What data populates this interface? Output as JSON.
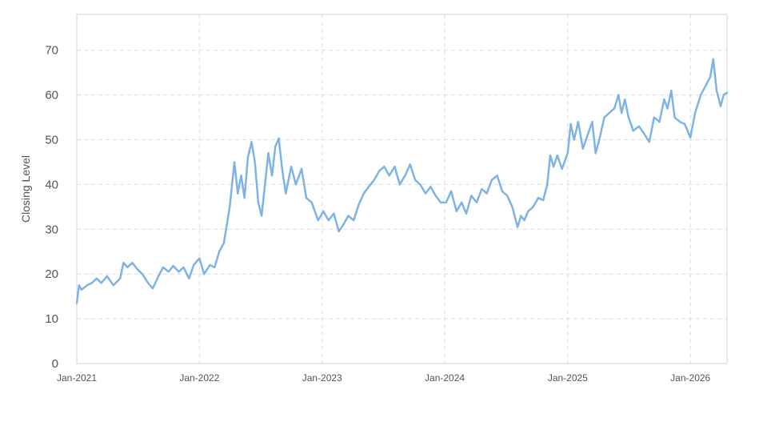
{
  "chart_data": {
    "type": "line",
    "title": "",
    "xlabel": "",
    "ylabel": "Closing Level",
    "ylim": [
      0,
      78
    ],
    "xlim": [
      "2021-01-01",
      "2026-04-20"
    ],
    "yticks": [
      0,
      10,
      20,
      30,
      40,
      50,
      60,
      70
    ],
    "xticks": [
      {
        "date": "2021-01-01",
        "label": "Jan-2021"
      },
      {
        "date": "2022-01-01",
        "label": "Jan-2022"
      },
      {
        "date": "2023-01-01",
        "label": "Jan-2023"
      },
      {
        "date": "2024-01-01",
        "label": "Jan-2024"
      },
      {
        "date": "2025-01-01",
        "label": "Jan-2025"
      },
      {
        "date": "2026-01-01",
        "label": "Jan-2026"
      }
    ],
    "grid": true,
    "grid_style": "dashed",
    "colors": {
      "line": "#7eb3e6",
      "grid": "#dcdcdc",
      "axis": "#c9d3e6",
      "text": "#555555"
    },
    "series": [
      {
        "values": [
          [
            "2021-01-01",
            13.5
          ],
          [
            "2021-01-08",
            17.5
          ],
          [
            "2021-01-15",
            16.5
          ],
          [
            "2021-02-01",
            17.5
          ],
          [
            "2021-02-15",
            18.0
          ],
          [
            "2021-03-01",
            19.0
          ],
          [
            "2021-03-15",
            18.0
          ],
          [
            "2021-04-01",
            19.5
          ],
          [
            "2021-04-20",
            17.5
          ],
          [
            "2021-05-10",
            19.0
          ],
          [
            "2021-05-20",
            22.5
          ],
          [
            "2021-06-01",
            21.5
          ],
          [
            "2021-06-15",
            22.5
          ],
          [
            "2021-07-01",
            21.0
          ],
          [
            "2021-07-15",
            20.0
          ],
          [
            "2021-08-01",
            18.0
          ],
          [
            "2021-08-15",
            16.8
          ],
          [
            "2021-09-01",
            19.5
          ],
          [
            "2021-09-15",
            21.5
          ],
          [
            "2021-10-01",
            20.5
          ],
          [
            "2021-10-15",
            21.8
          ],
          [
            "2021-11-01",
            20.5
          ],
          [
            "2021-11-15",
            21.5
          ],
          [
            "2021-12-01",
            19.0
          ],
          [
            "2021-12-15",
            22.0
          ],
          [
            "2022-01-01",
            23.5
          ],
          [
            "2022-01-15",
            20.0
          ],
          [
            "2022-02-01",
            22.0
          ],
          [
            "2022-02-15",
            21.5
          ],
          [
            "2022-03-01",
            25.0
          ],
          [
            "2022-03-15",
            27.0
          ],
          [
            "2022-04-01",
            35.0
          ],
          [
            "2022-04-15",
            45.0
          ],
          [
            "2022-04-25",
            38.0
          ],
          [
            "2022-05-05",
            42.0
          ],
          [
            "2022-05-15",
            37.0
          ],
          [
            "2022-05-25",
            46.0
          ],
          [
            "2022-06-05",
            49.5
          ],
          [
            "2022-06-15",
            45.0
          ],
          [
            "2022-06-25",
            36.0
          ],
          [
            "2022-07-05",
            33.0
          ],
          [
            "2022-07-15",
            40.0
          ],
          [
            "2022-07-25",
            47.0
          ],
          [
            "2022-08-05",
            42.0
          ],
          [
            "2022-08-15",
            48.5
          ],
          [
            "2022-08-25",
            50.3
          ],
          [
            "2022-09-05",
            43.0
          ],
          [
            "2022-09-15",
            38.0
          ],
          [
            "2022-10-01",
            44.0
          ],
          [
            "2022-10-15",
            40.0
          ],
          [
            "2022-11-01",
            43.5
          ],
          [
            "2022-11-15",
            37.0
          ],
          [
            "2022-12-01",
            36.0
          ],
          [
            "2022-12-20",
            32.0
          ],
          [
            "2023-01-05",
            34.0
          ],
          [
            "2023-01-20",
            32.0
          ],
          [
            "2023-02-05",
            33.5
          ],
          [
            "2023-02-20",
            29.5
          ],
          [
            "2023-03-05",
            31.0
          ],
          [
            "2023-03-20",
            33.0
          ],
          [
            "2023-04-05",
            32.0
          ],
          [
            "2023-04-20",
            35.5
          ],
          [
            "2023-05-05",
            38.0
          ],
          [
            "2023-05-20",
            39.5
          ],
          [
            "2023-06-05",
            41.0
          ],
          [
            "2023-06-20",
            43.0
          ],
          [
            "2023-07-05",
            44.0
          ],
          [
            "2023-07-20",
            42.0
          ],
          [
            "2023-08-05",
            44.0
          ],
          [
            "2023-08-20",
            40.0
          ],
          [
            "2023-09-05",
            42.0
          ],
          [
            "2023-09-20",
            44.5
          ],
          [
            "2023-10-05",
            41.0
          ],
          [
            "2023-10-20",
            40.0
          ],
          [
            "2023-11-05",
            38.0
          ],
          [
            "2023-11-20",
            39.5
          ],
          [
            "2023-12-05",
            37.5
          ],
          [
            "2023-12-20",
            36.0
          ],
          [
            "2024-01-05",
            36.0
          ],
          [
            "2024-01-20",
            38.5
          ],
          [
            "2024-02-05",
            34.0
          ],
          [
            "2024-02-20",
            36.0
          ],
          [
            "2024-03-05",
            33.5
          ],
          [
            "2024-03-20",
            37.5
          ],
          [
            "2024-04-05",
            36.0
          ],
          [
            "2024-04-20",
            39.0
          ],
          [
            "2024-05-05",
            38.0
          ],
          [
            "2024-05-20",
            41.0
          ],
          [
            "2024-06-05",
            42.0
          ],
          [
            "2024-06-20",
            38.5
          ],
          [
            "2024-07-05",
            37.5
          ],
          [
            "2024-07-20",
            35.0
          ],
          [
            "2024-08-05",
            30.5
          ],
          [
            "2024-08-15",
            33.0
          ],
          [
            "2024-08-25",
            32.0
          ],
          [
            "2024-09-05",
            34.0
          ],
          [
            "2024-09-20",
            35.0
          ],
          [
            "2024-10-05",
            37.0
          ],
          [
            "2024-10-20",
            36.5
          ],
          [
            "2024-11-01",
            40.0
          ],
          [
            "2024-11-10",
            46.5
          ],
          [
            "2024-11-20",
            44.0
          ],
          [
            "2024-12-01",
            46.5
          ],
          [
            "2024-12-15",
            43.5
          ],
          [
            "2025-01-01",
            47.0
          ],
          [
            "2025-01-10",
            53.5
          ],
          [
            "2025-01-20",
            50.0
          ],
          [
            "2025-02-01",
            54.0
          ],
          [
            "2025-02-15",
            48.0
          ],
          [
            "2025-03-01",
            51.0
          ],
          [
            "2025-03-15",
            54.0
          ],
          [
            "2025-03-25",
            47.0
          ],
          [
            "2025-04-05",
            50.0
          ],
          [
            "2025-04-20",
            55.0
          ],
          [
            "2025-05-05",
            56.0
          ],
          [
            "2025-05-20",
            57.0
          ],
          [
            "2025-06-01",
            60.0
          ],
          [
            "2025-06-10",
            56.0
          ],
          [
            "2025-06-20",
            59.0
          ],
          [
            "2025-07-01",
            55.0
          ],
          [
            "2025-07-15",
            52.0
          ],
          [
            "2025-08-01",
            53.0
          ],
          [
            "2025-08-15",
            51.5
          ],
          [
            "2025-09-01",
            49.5
          ],
          [
            "2025-09-15",
            55.0
          ],
          [
            "2025-10-01",
            54.0
          ],
          [
            "2025-10-15",
            59.0
          ],
          [
            "2025-10-25",
            57.0
          ],
          [
            "2025-11-05",
            61.0
          ],
          [
            "2025-11-15",
            55.0
          ],
          [
            "2025-12-01",
            54.0
          ],
          [
            "2025-12-15",
            53.5
          ],
          [
            "2026-01-01",
            50.5
          ],
          [
            "2026-01-15",
            56.0
          ],
          [
            "2026-02-01",
            60.0
          ],
          [
            "2026-02-15",
            62.0
          ],
          [
            "2026-03-01",
            64.0
          ],
          [
            "2026-03-10",
            68.0
          ],
          [
            "2026-03-20",
            61.0
          ],
          [
            "2026-04-01",
            57.5
          ],
          [
            "2026-04-10",
            60.0
          ],
          [
            "2026-04-20",
            60.5
          ]
        ]
      }
    ]
  }
}
